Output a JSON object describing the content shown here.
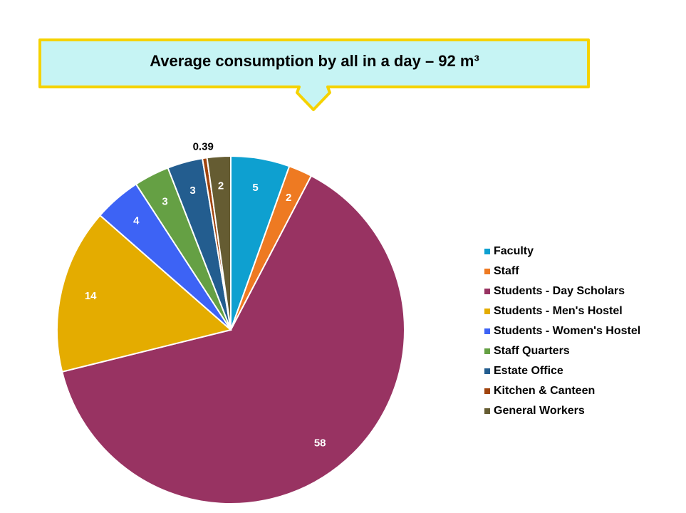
{
  "callout": {
    "text": "Average consumption by all in a day – 92 m³",
    "fill": "#c6f4f4",
    "border": "#f5d200"
  },
  "chart_data": {
    "type": "pie",
    "title": "Average consumption by all in a day – 92 m³",
    "start_angle_deg": 0,
    "direction": "clockwise",
    "slices": [
      {
        "label": "Faculty",
        "value": 5,
        "display": "5",
        "color": "#0ea0d0"
      },
      {
        "label": "Staff",
        "value": 2,
        "display": "2",
        "color": "#ee7a22"
      },
      {
        "label": "Students - Day Scholars",
        "value": 58,
        "display": "58",
        "color": "#983362"
      },
      {
        "label": "Students - Men's Hostel",
        "value": 14,
        "display": "14",
        "color": "#e4ac00"
      },
      {
        "label": "Students - Women's Hostel",
        "value": 4,
        "display": "4",
        "color": "#3d63f5"
      },
      {
        "label": "Staff Quarters",
        "value": 3,
        "display": "3",
        "color": "#65a044"
      },
      {
        "label": "Estate Office",
        "value": 3,
        "display": "3",
        "color": "#235d8f"
      },
      {
        "label": "Kitchen & Canteen",
        "value": 0.39,
        "display": "0.39",
        "color": "#a0440e"
      },
      {
        "label": "General Workers",
        "value": 2,
        "display": "2",
        "color": "#655c32"
      }
    ],
    "legend_position": "right"
  }
}
